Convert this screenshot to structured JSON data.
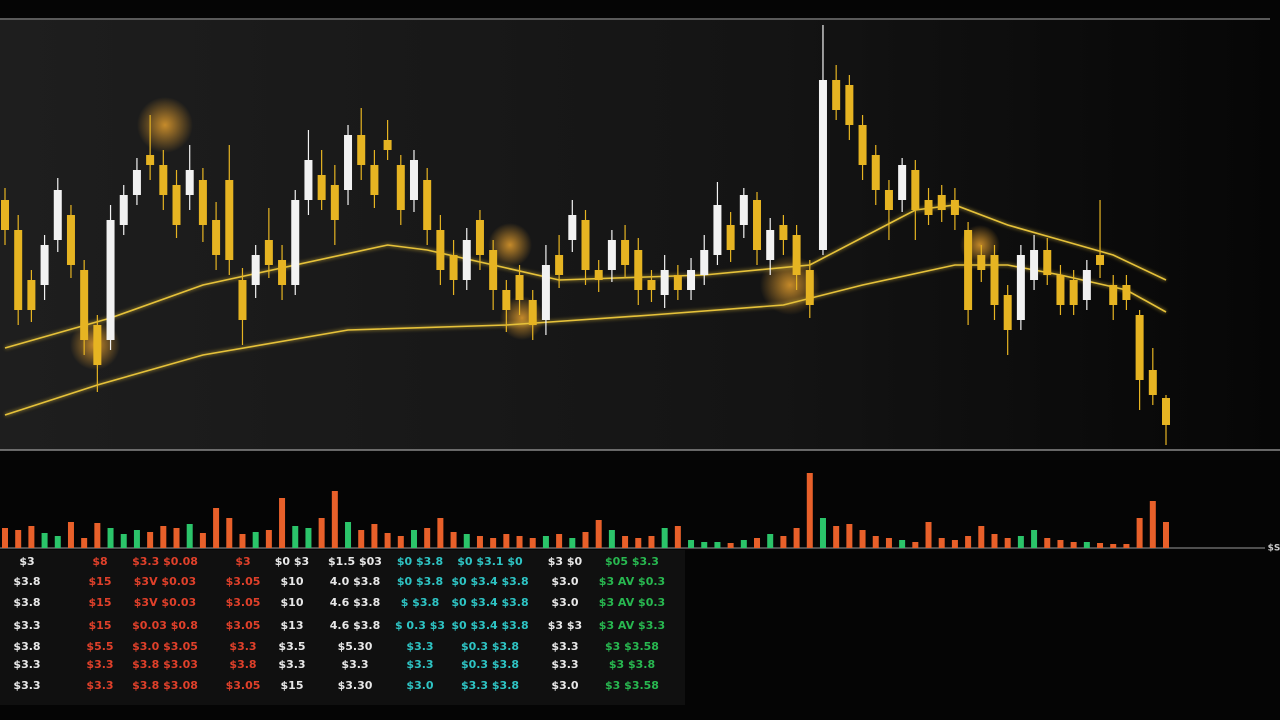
{
  "chart_data": {
    "type": "candlestick",
    "annotation": "$S",
    "xlim": [
      0,
      88
    ],
    "ylim": [
      0,
      430
    ],
    "up_color": "#f2f2f2",
    "down_color": "#e6b422",
    "open": [
      250,
      220,
      170,
      165,
      210,
      235,
      180,
      125,
      110,
      225,
      255,
      295,
      285,
      265,
      255,
      270,
      230,
      270,
      170,
      165,
      210,
      190,
      165,
      250,
      275,
      265,
      260,
      315,
      285,
      310,
      285,
      250,
      270,
      220,
      195,
      170,
      230,
      200,
      160,
      175,
      150,
      130,
      195,
      210,
      230,
      180,
      180,
      210,
      200,
      170,
      155,
      175,
      160,
      175,
      195,
      225,
      225,
      250,
      190,
      225,
      215,
      180,
      200,
      370,
      365,
      325,
      295,
      260,
      250,
      280,
      250,
      255,
      250,
      220,
      195,
      195,
      155,
      130,
      170,
      200,
      175,
      170,
      150,
      195,
      165,
      165,
      135,
      80,
      52
    ],
    "high": [
      262,
      235,
      180,
      215,
      272,
      245,
      190,
      135,
      245,
      265,
      292,
      335,
      300,
      280,
      305,
      282,
      248,
      305,
      182,
      205,
      242,
      205,
      260,
      320,
      300,
      285,
      325,
      342,
      300,
      330,
      295,
      300,
      282,
      235,
      210,
      222,
      240,
      210,
      170,
      185,
      160,
      205,
      215,
      250,
      240,
      190,
      220,
      225,
      212,
      180,
      195,
      185,
      192,
      215,
      268,
      238,
      262,
      258,
      232,
      235,
      225,
      190,
      425,
      385,
      375,
      335,
      305,
      270,
      292,
      290,
      262,
      265,
      262,
      228,
      205,
      205,
      165,
      205,
      215,
      212,
      185,
      180,
      190,
      250,
      175,
      175,
      140,
      102,
      55
    ],
    "low": [
      205,
      125,
      128,
      150,
      198,
      172,
      95,
      58,
      100,
      215,
      245,
      270,
      240,
      212,
      240,
      208,
      180,
      175,
      105,
      152,
      172,
      150,
      155,
      235,
      240,
      205,
      245,
      270,
      242,
      290,
      225,
      238,
      205,
      165,
      155,
      160,
      180,
      140,
      118,
      135,
      110,
      115,
      162,
      198,
      165,
      158,
      168,
      172,
      145,
      148,
      142,
      150,
      150,
      165,
      185,
      188,
      212,
      185,
      175,
      195,
      160,
      132,
      195,
      330,
      310,
      270,
      245,
      210,
      238,
      210,
      225,
      228,
      220,
      125,
      168,
      130,
      95,
      120,
      160,
      165,
      135,
      135,
      140,
      172,
      130,
      140,
      40,
      45,
      5
    ],
    "close": [
      220,
      140,
      140,
      205,
      260,
      185,
      110,
      85,
      230,
      255,
      280,
      285,
      255,
      225,
      280,
      225,
      195,
      190,
      130,
      195,
      185,
      165,
      250,
      290,
      250,
      230,
      315,
      285,
      255,
      300,
      240,
      290,
      220,
      180,
      170,
      210,
      195,
      160,
      140,
      150,
      125,
      185,
      175,
      235,
      180,
      170,
      210,
      185,
      160,
      160,
      180,
      160,
      180,
      200,
      245,
      200,
      255,
      200,
      220,
      210,
      175,
      145,
      370,
      340,
      325,
      285,
      260,
      240,
      285,
      240,
      235,
      240,
      235,
      140,
      180,
      145,
      120,
      195,
      200,
      175,
      145,
      145,
      180,
      185,
      145,
      150,
      70,
      55,
      25
    ],
    "ma": [
      {
        "color": "#e6c23a",
        "x": [
          0,
          8,
          15,
          29,
          32,
          42,
          53,
          61,
          69,
          72,
          76,
          80,
          84,
          88
        ],
        "values": [
          102,
          132,
          165,
          205,
          200,
          170,
          175,
          185,
          240,
          245,
          225,
          210,
          195,
          170
        ]
      },
      {
        "color": "#e6c23a",
        "x": [
          0,
          7,
          15,
          26,
          38,
          49,
          59,
          65,
          72,
          76,
          80,
          85,
          88
        ],
        "values": [
          35,
          65,
          95,
          120,
          125,
          135,
          145,
          165,
          185,
          185,
          175,
          160,
          138
        ]
      }
    ],
    "volume": [
      20,
      18,
      22,
      15,
      12,
      26,
      10,
      25,
      20,
      14,
      18,
      16,
      22,
      20,
      24,
      15,
      40,
      30,
      14,
      16,
      18,
      50,
      22,
      20,
      30,
      57,
      26,
      18,
      24,
      15,
      12,
      18,
      20,
      30,
      16,
      14,
      12,
      10,
      14,
      12,
      10,
      12,
      14,
      10,
      16,
      28,
      18,
      12,
      10,
      12,
      20,
      22,
      8,
      6,
      6,
      5,
      8,
      10,
      14,
      12,
      20,
      75,
      30,
      22,
      24,
      18,
      12,
      10,
      8,
      6,
      26,
      10,
      8,
      12,
      22,
      14,
      10,
      12,
      18,
      10,
      8,
      6,
      6,
      5,
      4,
      4,
      30,
      47,
      26
    ],
    "volume_ylim": [
      0,
      80
    ],
    "volume_up_color": "#2bc46a",
    "volume_down_color": "#e8602a"
  },
  "table": {
    "column_colors": [
      "#e8e8e8",
      "#e0402a",
      "#e0402a",
      "#e0402a",
      "#e8e8e8",
      "#e8e8e8",
      "#2ec4c4",
      "#2ec4c4",
      "#e8e8e8",
      "#28b850"
    ],
    "rows": [
      [
        "$3",
        "$8",
        "$3.3 $0.08",
        "$3",
        "$0 $3",
        "$1.5 $03",
        "$0 $3.8",
        "$0 $3.1 $0",
        "$3 $0",
        "$05 $3.3"
      ],
      [
        "$3.8",
        "$15",
        "$3V $0.03",
        "$3.05",
        "$10",
        "4.0 $3.8",
        "$0 $3.8",
        "$0 $3.4 $3.8",
        "$3.0",
        "$3 AV $0.3"
      ],
      [
        "$3.8",
        "$15",
        "$3V $0.03",
        "$3.05",
        "$10",
        "4.6 $3.8",
        "$ $3.8",
        "$0 $3.4 $3.8",
        "$3.0",
        "$3 AV $0.3"
      ],
      [
        "$3.3",
        "$15",
        "$0.03 $0.8",
        "$3.05",
        "$13",
        "4.6 $3.8",
        "$ 0.3 $3",
        "$0 $3.4 $3.8",
        "$3 $3",
        "$3 AV $3.3"
      ],
      [
        "$3.8",
        "$5.5",
        "$3.0 $3.05",
        "$3.3",
        "$3.5",
        "$5.30",
        "$3.3",
        "$0.3 $3.8",
        "$3.3",
        "$3 $3.58"
      ],
      [
        "$3.3",
        "$3.3",
        "$3.8 $3.03",
        "$3.8",
        "$3.3",
        "$3.3",
        "$3.3",
        "$0.3 $3.8",
        "$3.3",
        "$3 $3.8"
      ],
      [
        "$3.3",
        "$3.3",
        "$3.8 $3.08",
        "$3.05",
        "$15",
        "$3.30",
        "$3.0",
        "$3.3 $3.8",
        "$3.0",
        "$3 $3.58"
      ]
    ]
  }
}
